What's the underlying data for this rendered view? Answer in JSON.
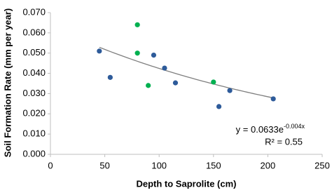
{
  "chart_data": {
    "type": "scatter",
    "x_label": "Depth to Saprolite (cm)",
    "y_label": "Soil Formation Rate (mm per year)",
    "series": [
      {
        "color": "#2e5b9a",
        "x": [
          45,
          55,
          95,
          105,
          115,
          155,
          165,
          205
        ],
        "values": [
          0.051,
          0.038,
          0.049,
          0.0426,
          0.0353,
          0.0236,
          0.0315,
          0.0274
        ]
      },
      {
        "color": "#00b050",
        "x": [
          80,
          80,
          90,
          150
        ],
        "values": [
          0.064,
          0.05,
          0.034,
          0.0357
        ]
      }
    ],
    "trendline": {
      "kind": "exponential",
      "coefficient": 0.0633,
      "exponent": -0.004,
      "color": "#7f7f7f",
      "equation_label": "y = 0.0633e",
      "equation_exponent_label": "-0.004x",
      "r2_label": "R² = 0.55"
    },
    "xlim": [
      0,
      250
    ],
    "xticks": [
      0,
      50,
      100,
      150,
      200,
      250
    ],
    "ylim": [
      0,
      0.07
    ],
    "yticks": [
      {
        "value": 0,
        "label": "0.000"
      },
      {
        "value": 0.01,
        "label": "0.010"
      },
      {
        "value": 0.02,
        "label": "0.020"
      },
      {
        "value": 0.03,
        "label": "0.030"
      },
      {
        "value": 0.04,
        "label": "0.040"
      },
      {
        "value": 0.05,
        "label": "0.050"
      },
      {
        "value": 0.06,
        "label": "0.060"
      },
      {
        "value": 0.07,
        "label": "0.070"
      }
    ],
    "grid": false
  }
}
